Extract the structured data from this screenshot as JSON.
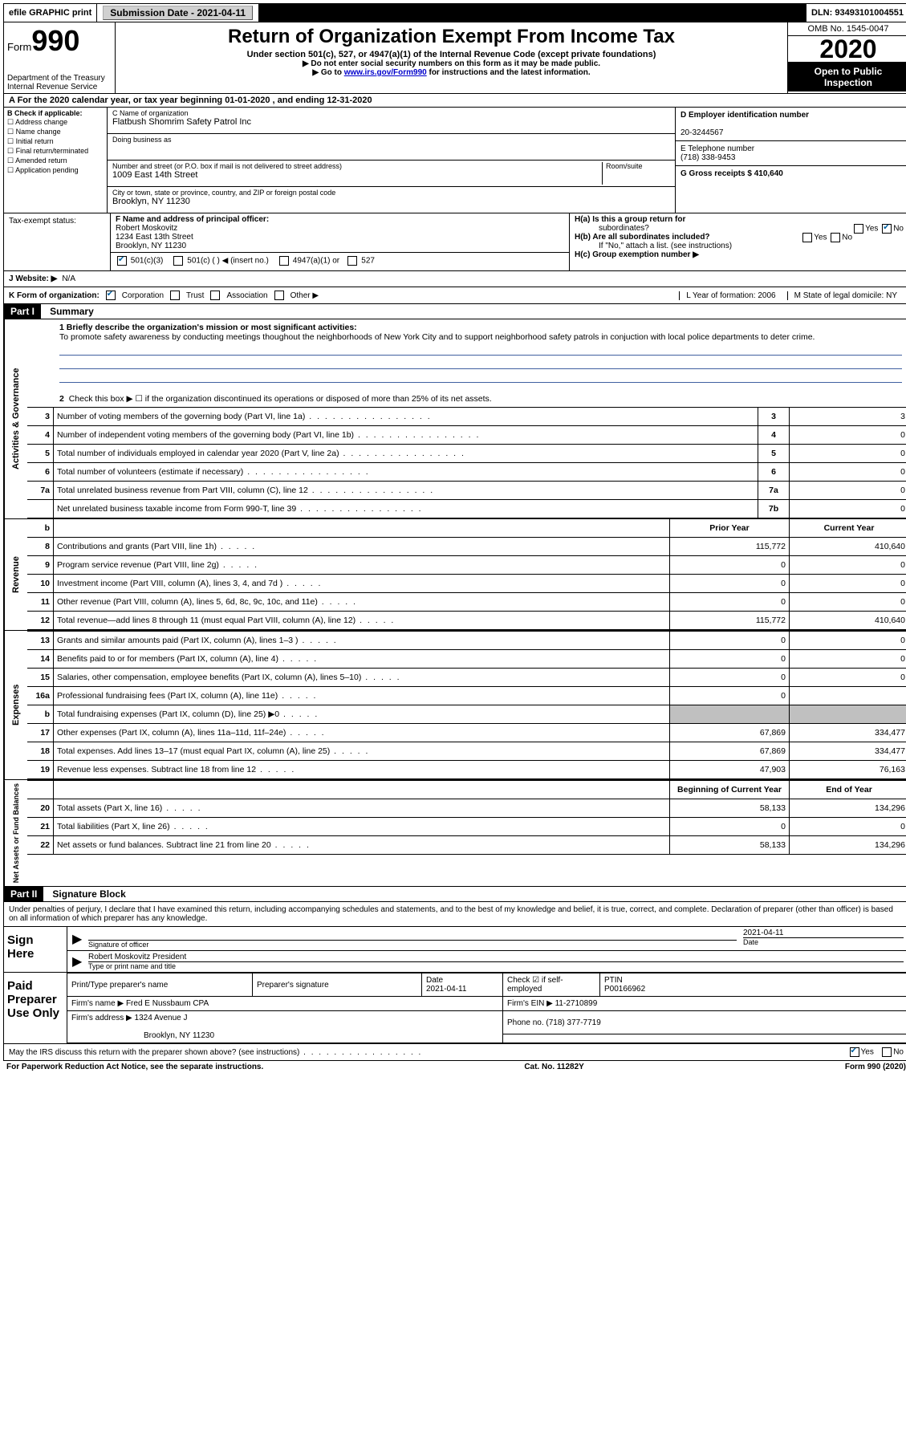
{
  "topbar": {
    "efile_label": "efile GRAPHIC print",
    "submission_label": "Submission Date - 2021-04-11",
    "dln_label": "DLN: 93493101004551"
  },
  "header": {
    "form_label": "Form",
    "form_number": "990",
    "dept": "Department of the Treasury",
    "irs": "Internal Revenue Service",
    "title": "Return of Organization Exempt From Income Tax",
    "subtitle": "Under section 501(c), 527, or 4947(a)(1) of the Internal Revenue Code (except private foundations)",
    "note1": "▶ Do not enter social security numbers on this form as it may be made public.",
    "note2_pre": "▶ Go to ",
    "note2_link": "www.irs.gov/Form990",
    "note2_post": " for instructions and the latest information.",
    "omb": "OMB No. 1545-0047",
    "year": "2020",
    "inspection": "Open to Public Inspection"
  },
  "row_a": "A For the 2020 calendar year, or tax year beginning 01-01-2020    , and ending 12-31-2020",
  "box_b": {
    "header": "B Check if applicable:",
    "items": [
      "Address change",
      "Name change",
      "Initial return",
      "Final return/terminated",
      "Amended return",
      "Application pending"
    ]
  },
  "box_c": {
    "name_label": "C Name of organization",
    "name": "Flatbush Shomrim Safety Patrol Inc",
    "dba_label": "Doing business as",
    "dba": "",
    "addr_label": "Number and street (or P.O. box if mail is not delivered to street address)",
    "room_label": "Room/suite",
    "addr": "1009 East 14th Street",
    "city_label": "City or town, state or province, country, and ZIP or foreign postal code",
    "city": "Brooklyn, NY  11230"
  },
  "box_d": {
    "ein_label": "D Employer identification number",
    "ein": "20-3244567",
    "phone_label": "E Telephone number",
    "phone": "(718) 338-9453",
    "gross_label": "G Gross receipts $ 410,640"
  },
  "box_f": {
    "label": "F  Name and address of principal officer:",
    "name": "Robert Moskovitz",
    "addr1": "1234 East 13th Street",
    "addr2": "Brooklyn, NY  11230"
  },
  "box_h": {
    "ha": "H(a)  Is this a group return for",
    "ha2": "subordinates?",
    "hb": "H(b)  Are all subordinates included?",
    "hb_note": "If \"No,\" attach a list. (see instructions)",
    "hc": "H(c)  Group exemption number ▶",
    "yes": "Yes",
    "no": "No"
  },
  "tax_exempt": {
    "label": "Tax-exempt status:",
    "opt1": "501(c)(3)",
    "opt2": "501(c) (  ) ◀ (insert no.)",
    "opt3": "4947(a)(1) or",
    "opt4": "527"
  },
  "website": {
    "label": "J   Website: ▶",
    "value": "N/A"
  },
  "row_k": {
    "label": "K Form of organization:",
    "corp": "Corporation",
    "trust": "Trust",
    "assoc": "Association",
    "other": "Other ▶",
    "l_label": "L Year of formation: 2006",
    "m_label": "M State of legal domicile: NY"
  },
  "part1": {
    "header": "Part I",
    "title": "Summary",
    "q1_label": "1  Briefly describe the organization's mission or most significant activities:",
    "q1_text": "To promote safety awareness by conducting meetings thoughout the neighborhoods of New York City and to support neighborhood safety patrols in conjuction with local police departments to deter crime.",
    "q2": "Check this box ▶ ☐  if the organization discontinued its operations or disposed of more than 25% of its net assets.",
    "side_activities": "Activities & Governance",
    "side_revenue": "Revenue",
    "side_expenses": "Expenses",
    "side_net": "Net Assets or Fund Balances",
    "prior_year": "Prior Year",
    "current_year": "Current Year",
    "begin_year": "Beginning of Current Year",
    "end_year": "End of Year",
    "rows_gov": [
      {
        "n": "3",
        "t": "Number of voting members of the governing body (Part VI, line 1a)",
        "box": "3",
        "v": "3"
      },
      {
        "n": "4",
        "t": "Number of independent voting members of the governing body (Part VI, line 1b)",
        "box": "4",
        "v": "0"
      },
      {
        "n": "5",
        "t": "Total number of individuals employed in calendar year 2020 (Part V, line 2a)",
        "box": "5",
        "v": "0"
      },
      {
        "n": "6",
        "t": "Total number of volunteers (estimate if necessary)",
        "box": "6",
        "v": "0"
      },
      {
        "n": "7a",
        "t": "Total unrelated business revenue from Part VIII, column (C), line 12",
        "box": "7a",
        "v": "0"
      },
      {
        "n": "",
        "t": "Net unrelated business taxable income from Form 990-T, line 39",
        "box": "7b",
        "v": "0"
      }
    ],
    "rows_rev": [
      {
        "n": "8",
        "t": "Contributions and grants (Part VIII, line 1h)",
        "p": "115,772",
        "c": "410,640"
      },
      {
        "n": "9",
        "t": "Program service revenue (Part VIII, line 2g)",
        "p": "0",
        "c": "0"
      },
      {
        "n": "10",
        "t": "Investment income (Part VIII, column (A), lines 3, 4, and 7d )",
        "p": "0",
        "c": "0"
      },
      {
        "n": "11",
        "t": "Other revenue (Part VIII, column (A), lines 5, 6d, 8c, 9c, 10c, and 11e)",
        "p": "0",
        "c": "0"
      },
      {
        "n": "12",
        "t": "Total revenue—add lines 8 through 11 (must equal Part VIII, column (A), line 12)",
        "p": "115,772",
        "c": "410,640"
      }
    ],
    "rows_exp": [
      {
        "n": "13",
        "t": "Grants and similar amounts paid (Part IX, column (A), lines 1–3 )",
        "p": "0",
        "c": "0"
      },
      {
        "n": "14",
        "t": "Benefits paid to or for members (Part IX, column (A), line 4)",
        "p": "0",
        "c": "0"
      },
      {
        "n": "15",
        "t": "Salaries, other compensation, employee benefits (Part IX, column (A), lines 5–10)",
        "p": "0",
        "c": "0"
      },
      {
        "n": "16a",
        "t": "Professional fundraising fees (Part IX, column (A), line 11e)",
        "p": "0",
        "c": ""
      },
      {
        "n": "b",
        "t": "Total fundraising expenses (Part IX, column (D), line 25) ▶0",
        "p": "grey",
        "c": "grey"
      },
      {
        "n": "17",
        "t": "Other expenses (Part IX, column (A), lines 11a–11d, 11f–24e)",
        "p": "67,869",
        "c": "334,477"
      },
      {
        "n": "18",
        "t": "Total expenses. Add lines 13–17 (must equal Part IX, column (A), line 25)",
        "p": "67,869",
        "c": "334,477"
      },
      {
        "n": "19",
        "t": "Revenue less expenses. Subtract line 18 from line 12",
        "p": "47,903",
        "c": "76,163"
      }
    ],
    "rows_net": [
      {
        "n": "20",
        "t": "Total assets (Part X, line 16)",
        "p": "58,133",
        "c": "134,296"
      },
      {
        "n": "21",
        "t": "Total liabilities (Part X, line 26)",
        "p": "0",
        "c": "0"
      },
      {
        "n": "22",
        "t": "Net assets or fund balances. Subtract line 21 from line 20",
        "p": "58,133",
        "c": "134,296"
      }
    ]
  },
  "part2": {
    "header": "Part II",
    "title": "Signature Block",
    "declaration": "Under penalties of perjury, I declare that I have examined this return, including accompanying schedules and statements, and to the best of my knowledge and belief, it is true, correct, and complete. Declaration of preparer (other than officer) is based on all information of which preparer has any knowledge.",
    "sign_here": "Sign Here",
    "sig_officer": "Signature of officer",
    "sig_date_label": "Date",
    "sig_date": "2021-04-11",
    "sig_name": "Robert Moskovitz  President",
    "sig_name_label": "Type or print name and title",
    "paid_prep": "Paid Preparer Use Only",
    "prep_name_label": "Print/Type preparer's name",
    "prep_sig_label": "Preparer's signature",
    "prep_date_label": "Date",
    "prep_date": "2021-04-11",
    "prep_check": "Check ☑ if self-employed",
    "ptin_label": "PTIN",
    "ptin": "P00166962",
    "firm_name_label": "Firm's name      ▶",
    "firm_name": "Fred E Nussbaum CPA",
    "firm_ein_label": "Firm's EIN ▶",
    "firm_ein": "11-2710899",
    "firm_addr_label": "Firm's address ▶",
    "firm_addr1": "1324 Avenue J",
    "firm_addr2": "Brooklyn, NY  11230",
    "firm_phone_label": "Phone no.",
    "firm_phone": "(718) 377-7719",
    "discuss": "May the IRS discuss this return with the preparer shown above? (see instructions)"
  },
  "footer": {
    "left": "For Paperwork Reduction Act Notice, see the separate instructions.",
    "mid": "Cat. No. 11282Y",
    "right": "Form 990 (2020)"
  }
}
